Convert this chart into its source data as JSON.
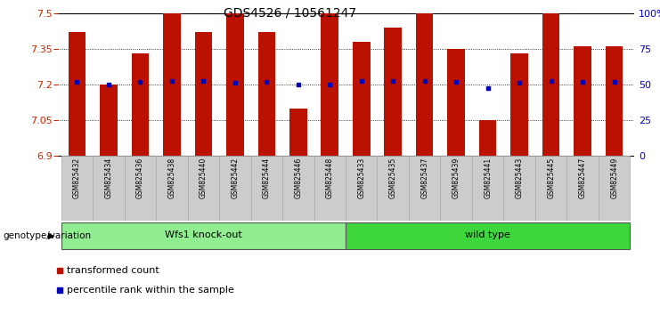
{
  "title": "GDS4526 / 10561247",
  "samples": [
    "GSM825432",
    "GSM825434",
    "GSM825436",
    "GSM825438",
    "GSM825440",
    "GSM825442",
    "GSM825444",
    "GSM825446",
    "GSM825448",
    "GSM825433",
    "GSM825435",
    "GSM825437",
    "GSM825439",
    "GSM825441",
    "GSM825443",
    "GSM825445",
    "GSM825447",
    "GSM825449"
  ],
  "transformed_count": [
    7.42,
    7.2,
    7.33,
    7.5,
    7.42,
    7.5,
    7.42,
    7.1,
    7.5,
    7.38,
    7.44,
    7.5,
    7.35,
    7.05,
    7.33,
    7.5,
    7.36,
    7.36
  ],
  "percentile_rank": [
    7.212,
    7.2,
    7.212,
    7.214,
    7.214,
    7.206,
    7.212,
    7.2,
    7.2,
    7.214,
    7.214,
    7.214,
    7.212,
    7.185,
    7.206,
    7.214,
    7.212,
    7.212
  ],
  "groups": [
    "Wfs1 knock-out",
    "wild type"
  ],
  "group_split": 9,
  "group_color1": "#90EE90",
  "group_color2": "#3DD63D",
  "bar_color": "#BB1100",
  "dot_color": "#0000BB",
  "ymin": 6.9,
  "ymax": 7.5,
  "yticks": [
    6.9,
    7.05,
    7.2,
    7.35,
    7.5
  ],
  "right_ytick_percents": [
    0,
    25,
    50,
    75,
    100
  ],
  "right_yticklabels": [
    "0",
    "25",
    "50",
    "75",
    "100%"
  ],
  "bar_width": 0.55,
  "ytick_color": "#CC2200",
  "right_ytick_color": "#0000CC",
  "legend_bar_label": "transformed count",
  "legend_dot_label": "percentile rank within the sample",
  "group_label": "genotype/variation"
}
